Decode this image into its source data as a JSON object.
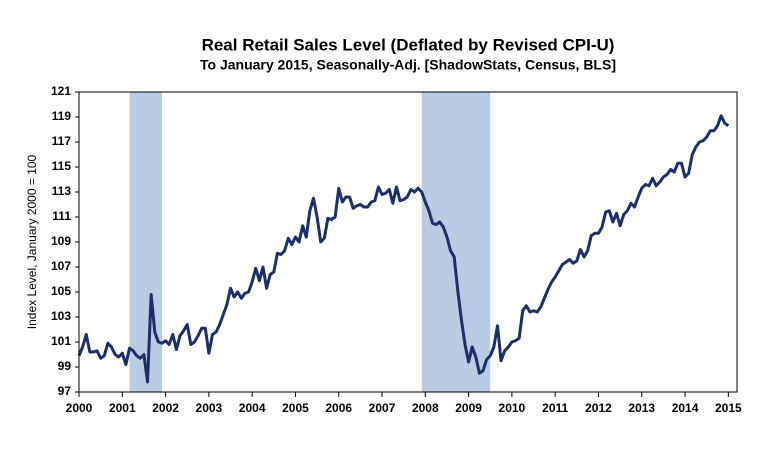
{
  "chart_data": {
    "type": "line",
    "title": "Real Retail Sales Level (Deflated by Revised CPI-U)",
    "subtitle": "To January 2015, Seasonally-Adj. [ShadowStats, Census, BLS]",
    "y_label": "Index Level, January 2000 = 100",
    "x": [
      2000,
      2000.083,
      2000.167,
      2000.25,
      2000.333,
      2000.417,
      2000.5,
      2000.583,
      2000.667,
      2000.75,
      2000.833,
      2000.917,
      2001,
      2001.083,
      2001.167,
      2001.25,
      2001.333,
      2001.417,
      2001.5,
      2001.583,
      2001.667,
      2001.75,
      2001.833,
      2001.917,
      2002,
      2002.083,
      2002.167,
      2002.25,
      2002.333,
      2002.417,
      2002.5,
      2002.583,
      2002.667,
      2002.75,
      2002.833,
      2002.917,
      2003,
      2003.083,
      2003.167,
      2003.25,
      2003.333,
      2003.417,
      2003.5,
      2003.583,
      2003.667,
      2003.75,
      2003.833,
      2003.917,
      2004,
      2004.083,
      2004.167,
      2004.25,
      2004.333,
      2004.417,
      2004.5,
      2004.583,
      2004.667,
      2004.75,
      2004.833,
      2004.917,
      2005,
      2005.083,
      2005.167,
      2005.25,
      2005.333,
      2005.417,
      2005.5,
      2005.583,
      2005.667,
      2005.75,
      2005.833,
      2005.917,
      2006,
      2006.083,
      2006.167,
      2006.25,
      2006.333,
      2006.417,
      2006.5,
      2006.583,
      2006.667,
      2006.75,
      2006.833,
      2006.917,
      2007,
      2007.083,
      2007.167,
      2007.25,
      2007.333,
      2007.417,
      2007.5,
      2007.583,
      2007.667,
      2007.75,
      2007.833,
      2007.917,
      2008,
      2008.083,
      2008.167,
      2008.25,
      2008.333,
      2008.417,
      2008.5,
      2008.583,
      2008.667,
      2008.75,
      2008.833,
      2008.917,
      2009,
      2009.083,
      2009.167,
      2009.25,
      2009.333,
      2009.417,
      2009.5,
      2009.583,
      2009.667,
      2009.75,
      2009.833,
      2009.917,
      2010,
      2010.083,
      2010.167,
      2010.25,
      2010.333,
      2010.417,
      2010.5,
      2010.583,
      2010.667,
      2010.75,
      2010.833,
      2010.917,
      2011,
      2011.083,
      2011.167,
      2011.25,
      2011.333,
      2011.417,
      2011.5,
      2011.583,
      2011.667,
      2011.75,
      2011.833,
      2011.917,
      2012,
      2012.083,
      2012.167,
      2012.25,
      2012.333,
      2012.417,
      2012.5,
      2012.583,
      2012.667,
      2012.75,
      2012.833,
      2012.917,
      2013,
      2013.083,
      2013.167,
      2013.25,
      2013.333,
      2013.417,
      2013.5,
      2013.583,
      2013.667,
      2013.75,
      2013.833,
      2013.917,
      2014,
      2014.083,
      2014.167,
      2014.25,
      2014.333,
      2014.417,
      2014.5,
      2014.583,
      2014.667,
      2014.75,
      2014.833,
      2014.917,
      2015
    ],
    "series": [
      {
        "color": "#1c2f6b",
        "values": [
          99.9,
          100.6,
          101.6,
          100.2,
          100.2,
          100.3,
          99.7,
          99.9,
          100.9,
          100.6,
          100.0,
          99.8,
          100.1,
          99.2,
          100.5,
          100.3,
          99.9,
          99.7,
          100.0,
          97.8,
          104.8,
          101.8,
          101.0,
          100.9,
          101.1,
          100.8,
          101.6,
          100.4,
          101.5,
          101.9,
          102.4,
          100.8,
          101.0,
          101.5,
          102.1,
          102.1,
          100.1,
          101.6,
          101.8,
          102.4,
          103.2,
          104.0,
          105.3,
          104.6,
          105.0,
          104.5,
          104.9,
          105.0,
          105.8,
          106.9,
          105.9,
          107.0,
          105.3,
          106.4,
          106.6,
          108.1,
          108.0,
          108.3,
          109.3,
          108.8,
          109.4,
          109.0,
          110.3,
          109.4,
          111.5,
          112.5,
          111.0,
          109.0,
          109.3,
          110.9,
          110.8,
          111.0,
          113.3,
          112.2,
          112.6,
          112.6,
          111.7,
          111.9,
          112.0,
          111.8,
          111.8,
          112.2,
          112.3,
          113.4,
          112.8,
          112.9,
          113.2,
          112.1,
          113.4,
          112.3,
          112.4,
          112.6,
          113.2,
          113.0,
          113.3,
          113.0,
          112.2,
          111.5,
          110.5,
          110.4,
          110.6,
          110.2,
          109.4,
          108.3,
          107.8,
          105.1,
          102.8,
          100.8,
          99.4,
          100.6,
          99.8,
          98.5,
          98.7,
          99.6,
          99.9,
          100.6,
          102.3,
          99.5,
          100.3,
          100.6,
          101.0,
          101.1,
          101.3,
          103.5,
          103.9,
          103.4,
          103.5,
          103.4,
          103.8,
          104.5,
          105.2,
          105.8,
          106.2,
          106.7,
          107.2,
          107.4,
          107.6,
          107.3,
          107.5,
          108.4,
          107.8,
          108.3,
          109.5,
          109.7,
          109.7,
          110.2,
          111.4,
          111.5,
          110.6,
          111.3,
          110.3,
          111.2,
          111.5,
          112.1,
          111.8,
          112.6,
          113.3,
          113.6,
          113.5,
          114.1,
          113.5,
          113.8,
          114.2,
          114.4,
          114.8,
          114.6,
          115.3,
          115.3,
          114.2,
          114.5,
          116.0,
          116.6,
          117.0,
          117.1,
          117.4,
          117.9,
          117.9,
          118.3,
          119.1,
          118.5,
          118.3
        ]
      }
    ],
    "shaded_regions": [
      [
        2001.167,
        2001.917
      ],
      [
        2007.917,
        2009.5
      ]
    ],
    "shade_color": "#b8cce4",
    "xlim": [
      2000,
      2015.2
    ],
    "xticks": [
      2000,
      2001,
      2002,
      2003,
      2004,
      2005,
      2006,
      2007,
      2008,
      2009,
      2010,
      2011,
      2012,
      2013,
      2014,
      2015
    ],
    "ylim": [
      97,
      121
    ],
    "yticks": [
      97,
      99,
      101,
      103,
      105,
      107,
      109,
      111,
      113,
      115,
      117,
      119,
      121
    ],
    "grid": false
  }
}
